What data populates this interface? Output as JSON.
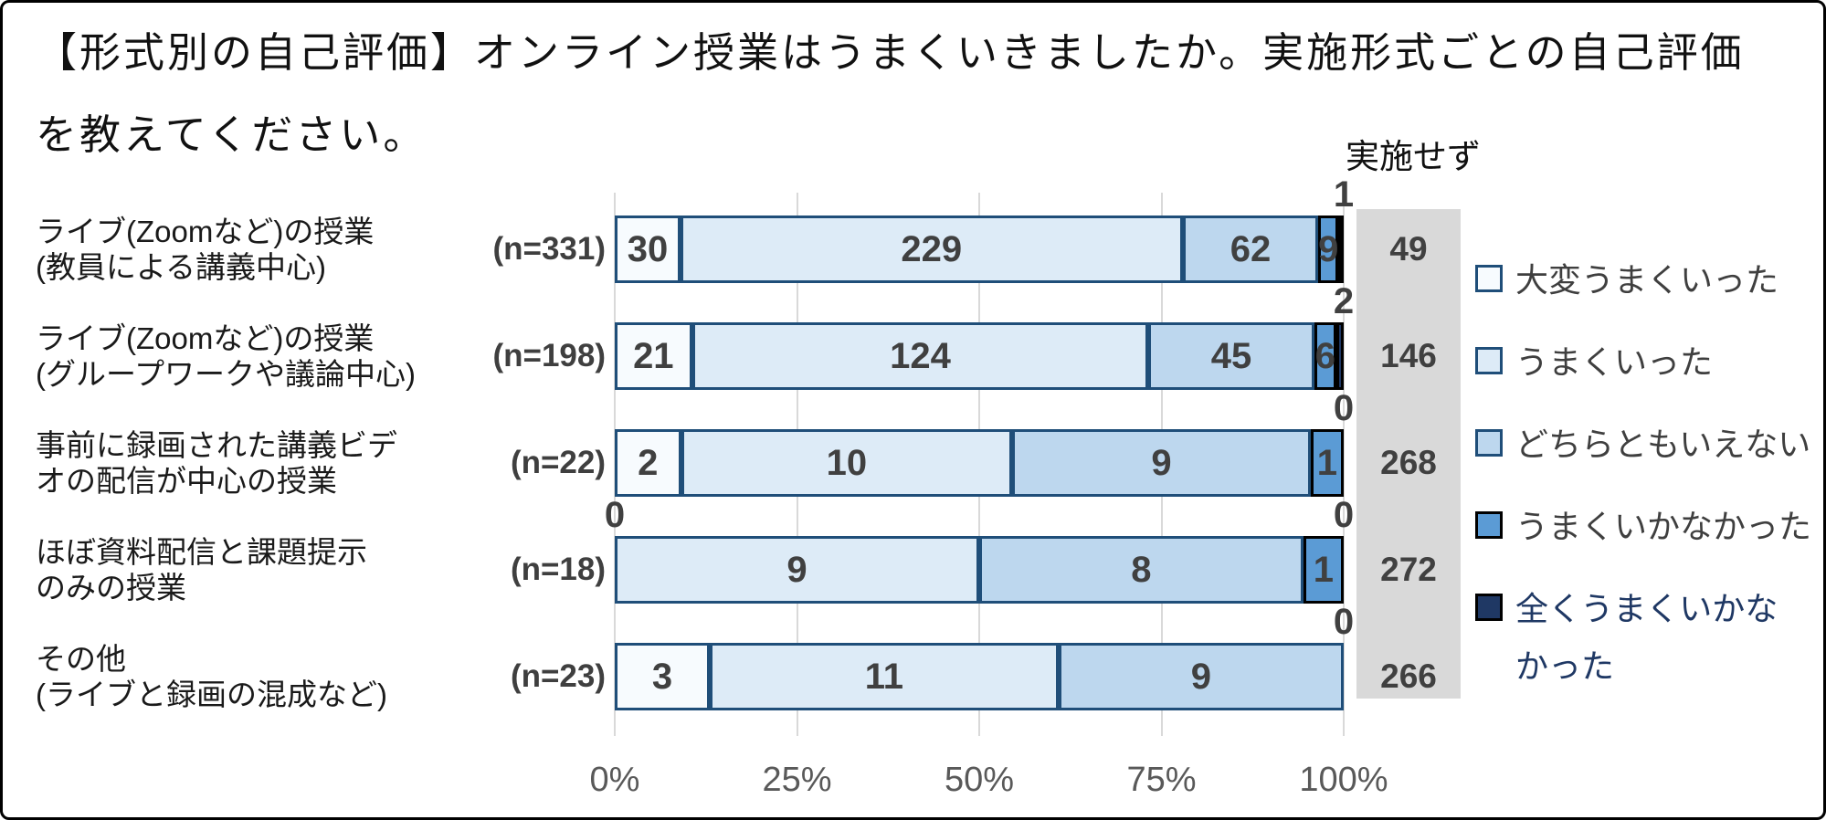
{
  "title_lines": [
    "【形式別の自己評価】オンライン授業はうまくいきましたか。実施形式ごとの自己評価",
    "を教えてください。"
  ],
  "colors": {
    "series_fills": [
      "#f7fbfe",
      "#ddebf7",
      "#bdd7ee",
      "#5b9bd5",
      "#1f3864"
    ],
    "series_borders": [
      "#1f4e79",
      "#1f4e79",
      "#1f4e79",
      "#000000",
      "#000000"
    ],
    "not_conducted_bg": "#d9d9d9",
    "grid": "#d9d9d9",
    "value_text": "#404040",
    "axis_text": "#595959",
    "legend_text": "#3f3f3f",
    "legend_last_text": "#1f3864"
  },
  "chart_data": {
    "type": "bar",
    "stacked": true,
    "orientation": "horizontal",
    "normalized_to_percent": true,
    "x_axis": {
      "ticks": [
        "0%",
        "25%",
        "50%",
        "75%",
        "100%"
      ],
      "range_percent": [
        0,
        100
      ],
      "grid": true
    },
    "series_names": [
      "大変うまくいった",
      "うまくいった",
      "どちらともいえない",
      "うまくいかなかった",
      "全くうまくいかなかった"
    ],
    "not_conducted_header": "実施せず",
    "rows": [
      {
        "label_lines": [
          "ライブ(Zoomなど)の授業",
          "(教員による講義中心)"
        ],
        "n_label": "(n=331)",
        "n": 331,
        "values": [
          30,
          229,
          62,
          9,
          1
        ],
        "not_conducted": 49,
        "outside_labels": [
          {
            "text": "1",
            "pos": "right"
          }
        ]
      },
      {
        "label_lines": [
          "ライブ(Zoomなど)の授業",
          "(グループワークや議論中心)"
        ],
        "n_label": "(n=198)",
        "n": 198,
        "values": [
          21,
          124,
          45,
          6,
          2
        ],
        "not_conducted": 146,
        "outside_labels": [
          {
            "text": "2",
            "pos": "right"
          }
        ]
      },
      {
        "label_lines": [
          "事前に録画された講義ビデ",
          "オの配信が中心の授業"
        ],
        "n_label": "(n=22)",
        "n": 22,
        "values": [
          2,
          10,
          9,
          1,
          0
        ],
        "not_conducted": 268,
        "outside_labels": [
          {
            "text": "0",
            "pos": "right"
          }
        ]
      },
      {
        "label_lines": [
          "ほぼ資料配信と課題提示",
          "のみの授業"
        ],
        "n_label": "(n=18)",
        "n": 18,
        "values": [
          0,
          9,
          8,
          1,
          0
        ],
        "not_conducted": 272,
        "outside_labels": [
          {
            "text": "0",
            "pos": "left"
          },
          {
            "text": "0",
            "pos": "right"
          }
        ]
      },
      {
        "label_lines": [
          "その他",
          "(ライブと録画の混成など)"
        ],
        "n_label": "(n=23)",
        "n": 23,
        "values": [
          3,
          11,
          9,
          0,
          0
        ],
        "not_conducted": 266,
        "outside_labels": [
          {
            "text": "0",
            "pos": "right"
          }
        ]
      }
    ]
  },
  "legend": {
    "items": [
      {
        "lines": [
          "大変うまくいった"
        ]
      },
      {
        "lines": [
          "うまくいった"
        ]
      },
      {
        "lines": [
          "どちらともいえない"
        ]
      },
      {
        "lines": [
          "うまくいかなかった"
        ]
      },
      {
        "lines": [
          "全くうまくいかな",
          "かった"
        ]
      }
    ]
  }
}
